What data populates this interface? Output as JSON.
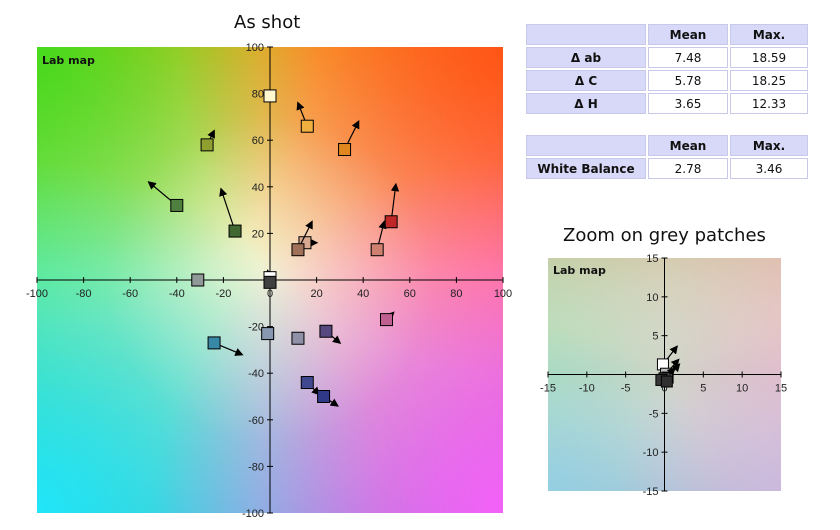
{
  "table_1": {
    "headers": [
      "",
      "Mean",
      "Max."
    ],
    "rows": [
      {
        "label": "Δ ab",
        "mean": "7.48",
        "max": "18.59"
      },
      {
        "label": "Δ C",
        "mean": "5.78",
        "max": "18.25"
      },
      {
        "label": "Δ H",
        "mean": "3.65",
        "max": "12.33"
      }
    ]
  },
  "table_2": {
    "headers": [
      "",
      "Mean",
      "Max."
    ],
    "rows": [
      {
        "label": "White Balance",
        "mean": "2.78",
        "max": "3.46"
      }
    ]
  },
  "chart_data": [
    {
      "type": "scatter",
      "title": "As shot",
      "map_label": "Lab map",
      "xlim": [
        -100,
        100
      ],
      "ylim": [
        -100,
        100
      ],
      "xticks": [
        -100,
        -80,
        -60,
        -40,
        -20,
        0,
        20,
        40,
        60,
        80,
        100
      ],
      "yticks": [
        -100,
        -80,
        -60,
        -40,
        -20,
        0,
        20,
        40,
        60,
        80,
        100
      ],
      "points": [
        {
          "a": 0,
          "b": 79,
          "color": "#fff8d0"
        },
        {
          "a": 16,
          "b": 66,
          "color": "#f0b040",
          "arrow_to": [
            12,
            76
          ]
        },
        {
          "a": 32,
          "b": 56,
          "color": "#e08820",
          "arrow_to": [
            38,
            68
          ]
        },
        {
          "a": -27,
          "b": 58,
          "color": "#90a030",
          "arrow_to": [
            -24,
            64
          ]
        },
        {
          "a": -40,
          "b": 32,
          "color": "#508040",
          "arrow_to": [
            -52,
            42
          ]
        },
        {
          "a": -15,
          "b": 21,
          "color": "#406830",
          "arrow_to": [
            -21,
            39
          ]
        },
        {
          "a": 52,
          "b": 25,
          "color": "#c02828",
          "arrow_to": [
            54,
            41
          ]
        },
        {
          "a": 46,
          "b": 13,
          "color": "#d08070",
          "arrow_to": [
            49,
            25
          ]
        },
        {
          "a": 15,
          "b": 16,
          "color": "#d8a890",
          "arrow_to": [
            20,
            16
          ]
        },
        {
          "a": 12,
          "b": 13,
          "color": "#a07058",
          "arrow_to": [
            18,
            25
          ]
        },
        {
          "a": -31,
          "b": 0,
          "color": "#909898"
        },
        {
          "a": 0,
          "b": 1,
          "color": "#ffffff",
          "arrow_to": [
            -1,
            4
          ]
        },
        {
          "a": 0,
          "b": -1,
          "color": "#404040"
        },
        {
          "a": 50,
          "b": -17,
          "color": "#c06090",
          "arrow_to": [
            53,
            -14
          ]
        },
        {
          "a": -24,
          "b": -27,
          "color": "#3888a8",
          "arrow_to": [
            -12,
            -32
          ]
        },
        {
          "a": -1,
          "b": -23,
          "color": "#8898b0"
        },
        {
          "a": 12,
          "b": -25,
          "color": "#9090a8"
        },
        {
          "a": 24,
          "b": -22,
          "color": "#584880",
          "arrow_to": [
            30,
            -27
          ]
        },
        {
          "a": 16,
          "b": -44,
          "color": "#404890",
          "arrow_to": [
            21,
            -49
          ]
        },
        {
          "a": 23,
          "b": -50,
          "color": "#303888",
          "arrow_to": [
            29,
            -54
          ]
        }
      ]
    },
    {
      "type": "scatter",
      "title": "Zoom on grey patches",
      "map_label": "Lab map",
      "xlim": [
        -15,
        15
      ],
      "ylim": [
        -15,
        15
      ],
      "xticks": [
        -15,
        -10,
        -5,
        0,
        5,
        10,
        15
      ],
      "yticks": [
        -15,
        -10,
        -5,
        0,
        5,
        10,
        15
      ],
      "points": [
        {
          "a": -0.2,
          "b": 1.3,
          "color": "#ffffff",
          "arrow_to": [
            1.6,
            3.6
          ]
        },
        {
          "a": 0.2,
          "b": 0.1,
          "color": "#c0c0c0",
          "arrow_to": [
            1.8,
            1.9
          ]
        },
        {
          "a": 0.4,
          "b": -0.4,
          "color": "#808080",
          "arrow_to": [
            1.9,
            1.3
          ]
        },
        {
          "a": 0.0,
          "b": -0.5,
          "color": "#505050",
          "arrow_to": [
            1.3,
            0.8
          ]
        },
        {
          "a": -0.4,
          "b": -0.7,
          "color": "#383838"
        },
        {
          "a": 0.3,
          "b": -0.9,
          "color": "#303030"
        }
      ]
    }
  ]
}
